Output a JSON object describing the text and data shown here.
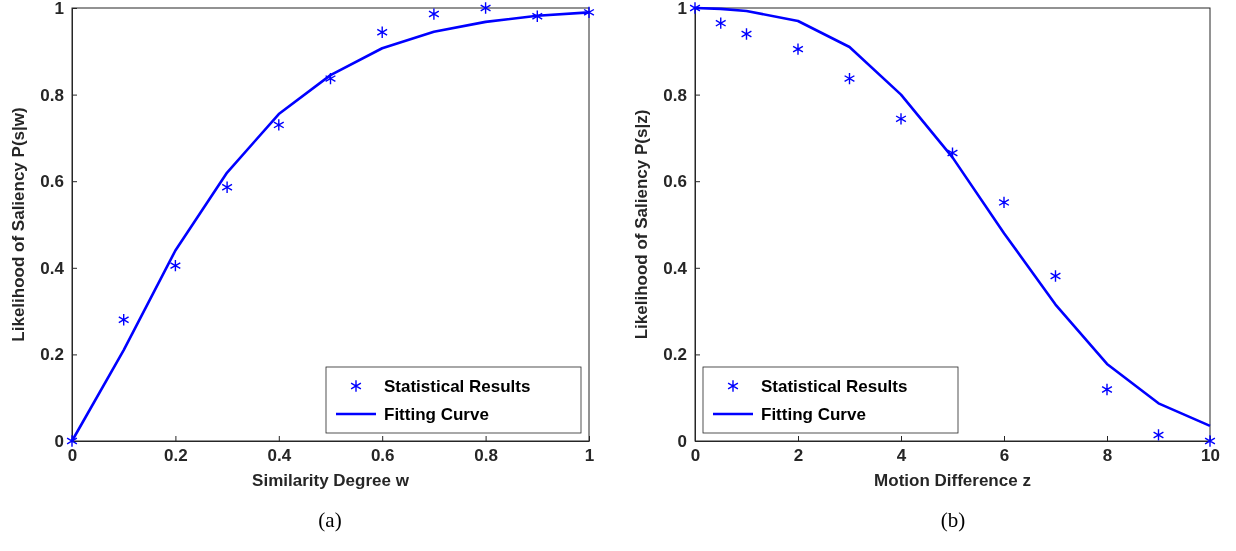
{
  "chart_data": [
    {
      "type": "scatter",
      "xlabel": "Similarity Degree w",
      "ylabel": "Likelihood of Saliency P(s|w)",
      "xlim": [
        0,
        1
      ],
      "ylim": [
        0,
        1
      ],
      "xticks": [
        0,
        0.2,
        0.4,
        0.6,
        0.8,
        1
      ],
      "yticks": [
        0,
        0.2,
        0.4,
        0.6,
        0.8,
        1
      ],
      "grid": false,
      "legend": "bottom right",
      "annotations": [
        "(a)"
      ],
      "series": [
        {
          "name": "Statistical Results",
          "color": "#0000ff",
          "marker": "cross",
          "x": [
            0,
            0.1,
            0.2,
            0.3,
            0.4,
            0.5,
            0.6,
            0.7,
            0.8,
            0.9,
            1
          ],
          "values": [
            0,
            0.28,
            0.405,
            0.586,
            0.73,
            0.837,
            0.944,
            0.986,
            1,
            0.981,
            0.99
          ]
        },
        {
          "type": "line",
          "name": "Fitting Curve",
          "color": "#0000ff",
          "marker": "none",
          "line_style": "solid",
          "x": [
            0,
            0.1,
            0.2,
            0.3,
            0.4,
            0.5,
            0.6,
            0.7,
            0.8,
            0.9,
            1
          ],
          "values": [
            0,
            0.21,
            0.44,
            0.62,
            0.755,
            0.845,
            0.907,
            0.945,
            0.968,
            0.982,
            0.99
          ]
        }
      ]
    },
    {
      "type": "scatter",
      "xlabel": "Motion Difference z",
      "ylabel": "Likelihood of Saliency P(s|z)",
      "xlim": [
        0,
        10
      ],
      "ylim": [
        0,
        1
      ],
      "xticks": [
        0,
        2,
        4,
        6,
        8,
        10
      ],
      "yticks": [
        0,
        0.2,
        0.4,
        0.6,
        0.8,
        1
      ],
      "grid": false,
      "legend": "bottom left",
      "annotations": [
        "(b)"
      ],
      "series": [
        {
          "name": "Statistical Results",
          "color": "#0000ff",
          "marker": "cross",
          "x": [
            0,
            0.5,
            1,
            2,
            3,
            4,
            5,
            6,
            7,
            8,
            9,
            10
          ],
          "values": [
            1,
            0.965,
            0.94,
            0.905,
            0.837,
            0.744,
            0.665,
            0.551,
            0.381,
            0.119,
            0.014,
            0
          ]
        },
        {
          "type": "line",
          "name": "Fitting Curve",
          "color": "#0000ff",
          "marker": "none",
          "line_style": "solid",
          "x": [
            0,
            0.5,
            1,
            2,
            3,
            4,
            5,
            6,
            7,
            8,
            9,
            10
          ],
          "values": [
            1,
            0.998,
            0.993,
            0.97,
            0.91,
            0.8,
            0.655,
            0.48,
            0.315,
            0.178,
            0.087,
            0.035
          ]
        }
      ]
    }
  ]
}
